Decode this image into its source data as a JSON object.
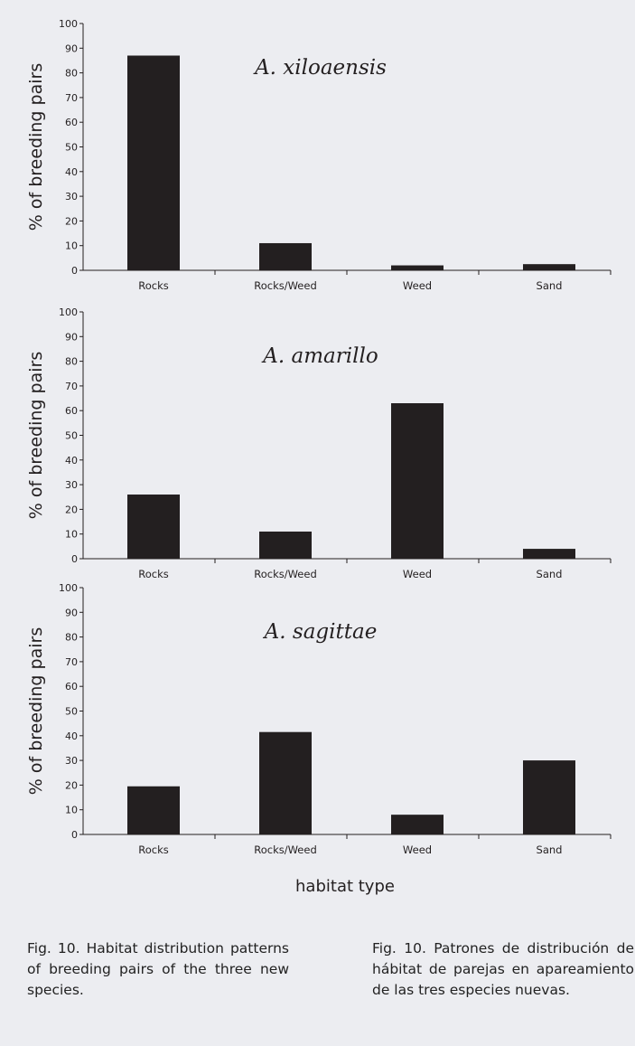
{
  "figure": {
    "xlabel": "habitat type",
    "ylabel": "% of breeding pairs",
    "bar_color": "#231f20",
    "background": "#ecedf1"
  },
  "chart_data": [
    {
      "type": "bar",
      "title": "A. xiloaensis",
      "categories": [
        "Rocks",
        "Rocks/Weed",
        "Weed",
        "Sand"
      ],
      "values": [
        87,
        11,
        2,
        2.5
      ],
      "ylabel": "% of breeding pairs",
      "xlabel": "",
      "ylim": [
        0,
        100
      ],
      "yticks": [
        0,
        10,
        20,
        30,
        40,
        50,
        60,
        70,
        80,
        90,
        100
      ],
      "grid": false
    },
    {
      "type": "bar",
      "title": "A. amarillo",
      "categories": [
        "Rocks",
        "Rocks/Weed",
        "Weed",
        "Sand"
      ],
      "values": [
        26,
        11,
        63,
        4
      ],
      "ylabel": "% of breeding pairs",
      "xlabel": "",
      "ylim": [
        0,
        100
      ],
      "yticks": [
        0,
        10,
        20,
        30,
        40,
        50,
        60,
        70,
        80,
        90,
        100
      ],
      "grid": false
    },
    {
      "type": "bar",
      "title": "A. sagittae",
      "categories": [
        "Rocks",
        "Rocks/Weed",
        "Weed",
        "Sand"
      ],
      "values": [
        19.5,
        41.5,
        8,
        30
      ],
      "ylabel": "% of breeding pairs",
      "xlabel": "habitat type",
      "ylim": [
        0,
        100
      ],
      "yticks": [
        0,
        10,
        20,
        30,
        40,
        50,
        60,
        70,
        80,
        90,
        100
      ],
      "grid": false
    }
  ],
  "captions": {
    "en": "Fig. 10. Habitat distribution patterns of breeding pairs of the three new species.",
    "es": "Fig. 10. Patrones de distribución de hábitat de parejas en apareamiento de las tres especies nuevas."
  }
}
